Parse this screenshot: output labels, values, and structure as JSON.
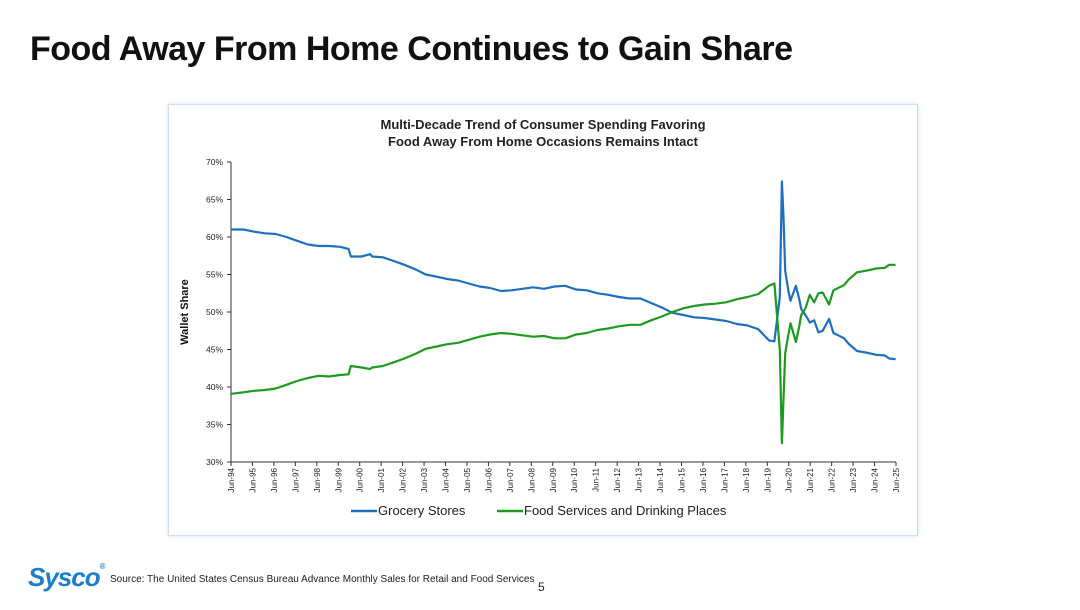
{
  "slide": {
    "title": "Food Away From Home Continues to Gain Share",
    "source": "Source: The United States Census Bureau Advance Monthly Sales for Retail and Food Services",
    "page_number": "5",
    "logo_text": "Sysco",
    "logo_mark": "®"
  },
  "chart_data": {
    "type": "line",
    "title": [
      "Multi-Decade Trend of Consumer Spending Favoring",
      "Food Away From Home Occasions Remains Intact"
    ],
    "ylabel": "Wallet Share",
    "xlabel": "",
    "ylim": [
      30,
      70
    ],
    "yticks": [
      30,
      35,
      40,
      45,
      50,
      55,
      60,
      65,
      70
    ],
    "ytick_labels": [
      "30%",
      "35%",
      "40%",
      "45%",
      "50%",
      "55%",
      "60%",
      "65%",
      "70%"
    ],
    "xlim": [
      1994.417,
      2025.417
    ],
    "x_tick_labels": [
      "Jun-94",
      "Jun-95",
      "Jun-96",
      "Jun-97",
      "Jun-98",
      "Jun-99",
      "Jun-00",
      "Jun-01",
      "Jun-02",
      "Jun-03",
      "Jun-04",
      "Jun-05",
      "Jun-06",
      "Jun-07",
      "Jun-08",
      "Jun-09",
      "Jun-10",
      "Jun-11",
      "Jun-12",
      "Jun-13",
      "Jun-14",
      "Jun-15",
      "Jun-16",
      "Jun-17",
      "Jun-18",
      "Jun-19",
      "Jun-20",
      "Jun-21",
      "Jun-22",
      "Jun-23",
      "Jun-24",
      "Jun-25"
    ],
    "legend_position": "bottom",
    "series": [
      {
        "name": "Grocery Stores",
        "color": "#1f6fbf",
        "points": [
          [
            1994.42,
            61.0
          ],
          [
            1995.0,
            61.0
          ],
          [
            1995.5,
            60.7
          ],
          [
            1996.0,
            60.5
          ],
          [
            1996.5,
            60.4
          ],
          [
            1997.0,
            60.0
          ],
          [
            1997.5,
            59.5
          ],
          [
            1998.0,
            59.0
          ],
          [
            1998.5,
            58.8
          ],
          [
            1999.0,
            58.8
          ],
          [
            1999.5,
            58.7
          ],
          [
            1999.9,
            58.4
          ],
          [
            2000.0,
            57.4
          ],
          [
            2000.5,
            57.4
          ],
          [
            2000.9,
            57.7
          ],
          [
            2001.0,
            57.4
          ],
          [
            2001.5,
            57.3
          ],
          [
            2002.0,
            56.8
          ],
          [
            2002.5,
            56.3
          ],
          [
            2003.0,
            55.7
          ],
          [
            2003.5,
            55.0
          ],
          [
            2004.0,
            54.7
          ],
          [
            2004.5,
            54.4
          ],
          [
            2005.0,
            54.2
          ],
          [
            2005.5,
            53.8
          ],
          [
            2006.0,
            53.4
          ],
          [
            2006.5,
            53.2
          ],
          [
            2007.0,
            52.8
          ],
          [
            2007.5,
            52.9
          ],
          [
            2008.0,
            53.1
          ],
          [
            2008.5,
            53.3
          ],
          [
            2009.0,
            53.1
          ],
          [
            2009.5,
            53.4
          ],
          [
            2010.0,
            53.5
          ],
          [
            2010.5,
            53.0
          ],
          [
            2011.0,
            52.9
          ],
          [
            2011.5,
            52.5
          ],
          [
            2012.0,
            52.3
          ],
          [
            2012.5,
            52.0
          ],
          [
            2013.0,
            51.8
          ],
          [
            2013.5,
            51.8
          ],
          [
            2014.0,
            51.2
          ],
          [
            2014.5,
            50.6
          ],
          [
            2015.0,
            49.9
          ],
          [
            2015.5,
            49.6
          ],
          [
            2016.0,
            49.3
          ],
          [
            2016.5,
            49.2
          ],
          [
            2017.0,
            49.0
          ],
          [
            2017.5,
            48.8
          ],
          [
            2018.0,
            48.4
          ],
          [
            2018.5,
            48.2
          ],
          [
            2019.0,
            47.7
          ],
          [
            2019.5,
            46.2
          ],
          [
            2019.75,
            46.1
          ],
          [
            2020.0,
            52.0
          ],
          [
            2020.1,
            67.4
          ],
          [
            2020.17,
            63.0
          ],
          [
            2020.25,
            55.5
          ],
          [
            2020.4,
            52.8
          ],
          [
            2020.5,
            51.5
          ],
          [
            2020.75,
            53.5
          ],
          [
            2020.9,
            51.8
          ],
          [
            2021.0,
            50.4
          ],
          [
            2021.2,
            49.6
          ],
          [
            2021.4,
            48.6
          ],
          [
            2021.6,
            48.9
          ],
          [
            2021.8,
            47.3
          ],
          [
            2022.0,
            47.5
          ],
          [
            2022.3,
            49.1
          ],
          [
            2022.5,
            47.2
          ],
          [
            2023.0,
            46.5
          ],
          [
            2023.2,
            45.8
          ],
          [
            2023.6,
            44.8
          ],
          [
            2024.0,
            44.6
          ],
          [
            2024.5,
            44.3
          ],
          [
            2024.9,
            44.2
          ],
          [
            2025.1,
            43.8
          ],
          [
            2025.4,
            43.7
          ]
        ]
      },
      {
        "name": "Food Services and Drinking Places",
        "color": "#1e9a1e",
        "points": [
          [
            1994.42,
            39.1
          ],
          [
            1995.0,
            39.3
          ],
          [
            1995.5,
            39.5
          ],
          [
            1996.0,
            39.6
          ],
          [
            1996.5,
            39.8
          ],
          [
            1997.0,
            40.3
          ],
          [
            1997.5,
            40.8
          ],
          [
            1998.0,
            41.2
          ],
          [
            1998.5,
            41.5
          ],
          [
            1999.0,
            41.4
          ],
          [
            1999.5,
            41.6
          ],
          [
            1999.9,
            41.7
          ],
          [
            2000.0,
            42.8
          ],
          [
            2000.5,
            42.6
          ],
          [
            2000.9,
            42.4
          ],
          [
            2001.0,
            42.6
          ],
          [
            2001.5,
            42.8
          ],
          [
            2002.0,
            43.3
          ],
          [
            2002.5,
            43.8
          ],
          [
            2003.0,
            44.4
          ],
          [
            2003.5,
            45.1
          ],
          [
            2004.0,
            45.4
          ],
          [
            2004.5,
            45.7
          ],
          [
            2005.0,
            45.9
          ],
          [
            2005.5,
            46.3
          ],
          [
            2006.0,
            46.7
          ],
          [
            2006.5,
            47.0
          ],
          [
            2007.0,
            47.2
          ],
          [
            2007.5,
            47.1
          ],
          [
            2008.0,
            46.9
          ],
          [
            2008.5,
            46.7
          ],
          [
            2009.0,
            46.8
          ],
          [
            2009.5,
            46.5
          ],
          [
            2010.0,
            46.5
          ],
          [
            2010.5,
            47.0
          ],
          [
            2011.0,
            47.2
          ],
          [
            2011.5,
            47.6
          ],
          [
            2012.0,
            47.8
          ],
          [
            2012.5,
            48.1
          ],
          [
            2013.0,
            48.3
          ],
          [
            2013.5,
            48.3
          ],
          [
            2014.0,
            48.9
          ],
          [
            2014.5,
            49.4
          ],
          [
            2015.0,
            50.0
          ],
          [
            2015.5,
            50.5
          ],
          [
            2016.0,
            50.8
          ],
          [
            2016.5,
            51.0
          ],
          [
            2017.0,
            51.1
          ],
          [
            2017.5,
            51.3
          ],
          [
            2018.0,
            51.7
          ],
          [
            2018.5,
            52.0
          ],
          [
            2019.0,
            52.4
          ],
          [
            2019.5,
            53.5
          ],
          [
            2019.75,
            53.8
          ],
          [
            2020.0,
            45.0
          ],
          [
            2020.1,
            32.5
          ],
          [
            2020.17,
            38.0
          ],
          [
            2020.25,
            44.5
          ],
          [
            2020.4,
            47.0
          ],
          [
            2020.5,
            48.5
          ],
          [
            2020.75,
            46.0
          ],
          [
            2020.9,
            48.0
          ],
          [
            2021.0,
            49.6
          ],
          [
            2021.2,
            50.5
          ],
          [
            2021.4,
            52.3
          ],
          [
            2021.6,
            51.3
          ],
          [
            2021.8,
            52.5
          ],
          [
            2022.0,
            52.6
          ],
          [
            2022.3,
            51.0
          ],
          [
            2022.5,
            52.9
          ],
          [
            2023.0,
            53.6
          ],
          [
            2023.2,
            54.3
          ],
          [
            2023.6,
            55.3
          ],
          [
            2024.0,
            55.5
          ],
          [
            2024.5,
            55.8
          ],
          [
            2024.9,
            55.9
          ],
          [
            2025.1,
            56.3
          ],
          [
            2025.4,
            56.3
          ]
        ]
      }
    ]
  }
}
